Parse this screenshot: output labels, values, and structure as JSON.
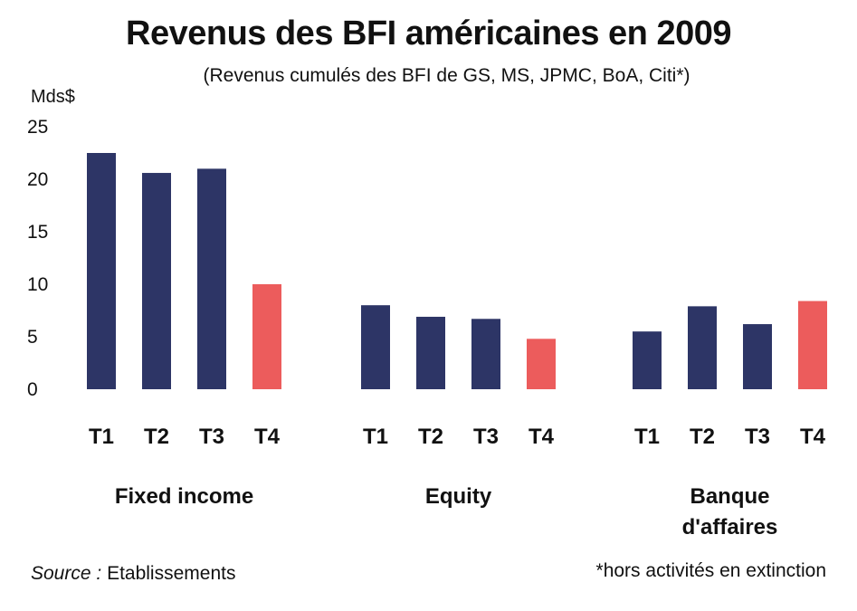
{
  "title": "Revenus des BFI américaines en 2009",
  "subtitle": "(Revenus cumulés des BFI de GS, MS, JPMC, BoA, Citi*)",
  "unit_label": "Mds$",
  "source_label": "Source :",
  "source_value": "Etablissements",
  "footnote": "*hors activités en extinction",
  "colors": {
    "past_quarter": "#2d3566",
    "last_quarter": "#ec5c5c"
  },
  "chart_data": {
    "type": "bar",
    "title": "Revenus des BFI américaines en 2009",
    "subtitle": "(Revenus cumulés des BFI de GS, MS, JPMC, BoA, Citi*)",
    "ylabel": "Mds$",
    "ylim": [
      0,
      25
    ],
    "yticks": [
      0,
      5,
      10,
      15,
      20,
      25
    ],
    "grid": false,
    "groups": [
      {
        "name": "Fixed income",
        "name_lines": [
          "Fixed income"
        ],
        "categories": [
          "T1",
          "T2",
          "T3",
          "T4"
        ],
        "values": [
          22.5,
          20.6,
          21.0,
          10.0
        ]
      },
      {
        "name": "Equity",
        "name_lines": [
          "Equity"
        ],
        "categories": [
          "T1",
          "T2",
          "T3",
          "T4"
        ],
        "values": [
          8.0,
          6.9,
          6.7,
          4.8
        ]
      },
      {
        "name": "Banque d'affaires",
        "name_lines": [
          "Banque",
          "d'affaires"
        ],
        "categories": [
          "T1",
          "T2",
          "T3",
          "T4"
        ],
        "values": [
          5.5,
          7.9,
          6.2,
          8.4
        ]
      }
    ],
    "highlight_category": "T4"
  }
}
